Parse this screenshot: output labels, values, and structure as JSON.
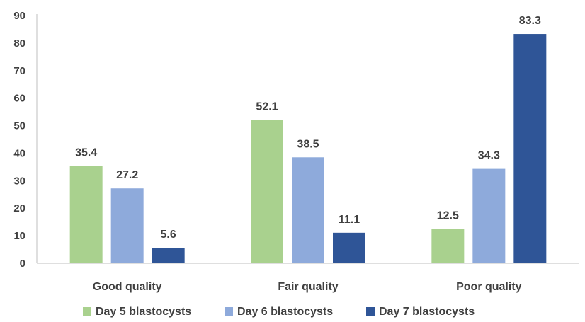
{
  "chart_data": {
    "type": "bar",
    "title": "",
    "xlabel": "",
    "ylabel": "",
    "categories": [
      "Good quality",
      "Fair quality",
      "Poor quality"
    ],
    "series": [
      {
        "name": "Day 5 blastocysts",
        "values": [
          35.4,
          52.1,
          12.5
        ],
        "color": "#a9d18e"
      },
      {
        "name": "Day 6 blastocysts",
        "values": [
          27.2,
          38.5,
          34.3
        ],
        "color": "#8eaadb"
      },
      {
        "name": "Day 7 blastocysts",
        "values": [
          5.6,
          11.1,
          83.3
        ],
        "color": "#2f5597"
      }
    ],
    "ylim": [
      0,
      90
    ],
    "yticks": [
      0,
      10,
      20,
      30,
      40,
      50,
      60,
      70,
      80,
      90
    ],
    "grid": false,
    "data_labels": true,
    "legend_position": "bottom"
  }
}
